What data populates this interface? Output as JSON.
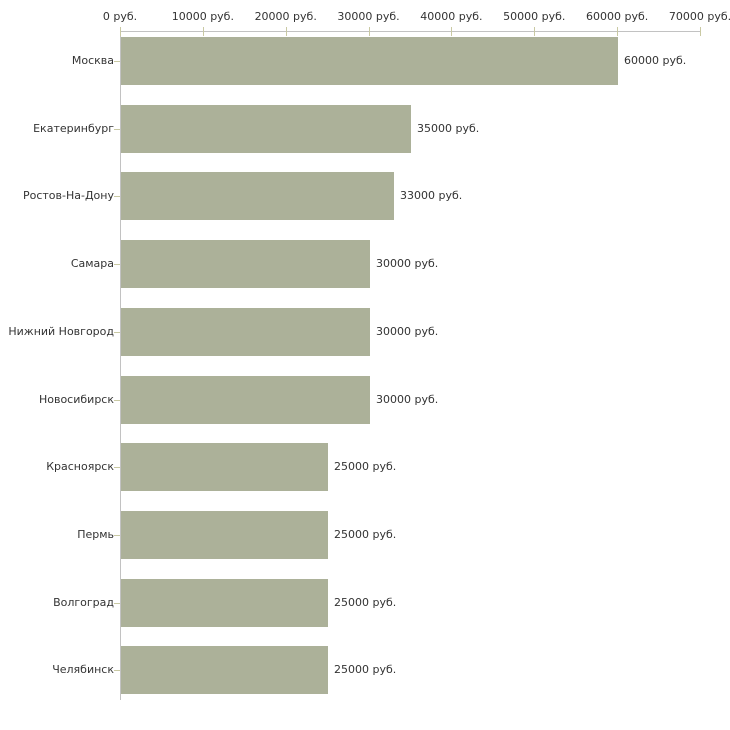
{
  "chart_data": {
    "type": "bar",
    "orientation": "horizontal",
    "title": "",
    "xlabel": "",
    "ylabel": "",
    "grid": false,
    "legend": false,
    "categories": [
      "Москва",
      "Екатеринбург",
      "Ростов-На-Дону",
      "Самара",
      "Нижний Новгород",
      "Новосибирск",
      "Красноярск",
      "Пермь",
      "Волгоград",
      "Челябинск"
    ],
    "values": [
      60000,
      35000,
      33000,
      30000,
      30000,
      30000,
      25000,
      25000,
      25000,
      25000
    ],
    "value_labels": [
      "60000 руб.",
      "35000 руб.",
      "33000 руб.",
      "30000 руб.",
      "30000 руб.",
      "30000 руб.",
      "25000 руб.",
      "25000 руб.",
      "25000 руб.",
      "25000 руб."
    ],
    "x_axis": {
      "position": "top",
      "min": 0,
      "max": 70000,
      "tick_step": 10000,
      "ticks": [
        0,
        10000,
        20000,
        30000,
        40000,
        50000,
        60000,
        70000
      ],
      "tick_labels": [
        "0 руб.",
        "10000 руб.",
        "20000 руб.",
        "30000 руб.",
        "40000 руб.",
        "50000 руб.",
        "60000 руб.",
        "70000 руб."
      ],
      "unit": "руб."
    },
    "colors": {
      "bar": "#acb199",
      "axis_line": "#c2c2c2",
      "tick_mark": "#c9c9a3",
      "text": "#333333",
      "background": "#ffffff"
    }
  }
}
